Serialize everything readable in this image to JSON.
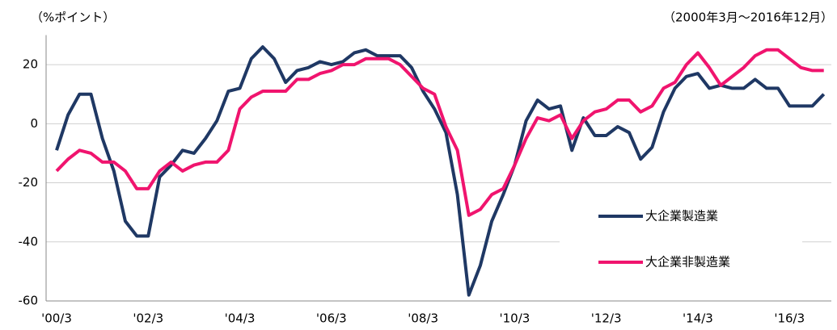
{
  "chart_data": {
    "type": "line",
    "y_unit_label": "（%ポイント）",
    "period_label": "（2000年3月～2016年12月）",
    "categories": [
      "'00/3",
      null,
      null,
      null,
      null,
      null,
      null,
      null,
      "'02/3",
      null,
      null,
      null,
      null,
      null,
      null,
      null,
      "'04/3",
      null,
      null,
      null,
      null,
      null,
      null,
      null,
      "'06/3",
      null,
      null,
      null,
      null,
      null,
      null,
      null,
      "'08/3",
      null,
      null,
      null,
      null,
      null,
      null,
      null,
      "'10/3",
      null,
      null,
      null,
      null,
      null,
      null,
      null,
      "'12/3",
      null,
      null,
      null,
      null,
      null,
      null,
      null,
      "'14/3",
      null,
      null,
      null,
      null,
      null,
      null,
      null,
      "'16/3",
      null,
      null,
      null
    ],
    "series": [
      {
        "name": "大企業製造業",
        "color": "#1f3864",
        "values": [
          -9,
          3,
          10,
          10,
          -5,
          -16,
          -33,
          -38,
          -38,
          -18,
          -14,
          -9,
          -10,
          -5,
          1,
          11,
          12,
          22,
          26,
          22,
          14,
          18,
          19,
          21,
          20,
          21,
          24,
          25,
          23,
          23,
          23,
          19,
          11,
          5,
          -3,
          -24,
          -58,
          -48,
          -33,
          -24,
          -14,
          1,
          8,
          5,
          6,
          -9,
          2,
          -4,
          -4,
          -1,
          -3,
          -12,
          -8,
          4,
          12,
          16,
          17,
          12,
          13,
          12,
          12,
          15,
          12,
          12,
          6,
          6,
          6,
          10
        ]
      },
      {
        "name": "大企業非製造業",
        "color": "#f0146e",
        "values": [
          -16,
          -12,
          -9,
          -10,
          -13,
          -13,
          -16,
          -22,
          -22,
          -16,
          -13,
          -16,
          -14,
          -13,
          -13,
          -9,
          5,
          9,
          11,
          11,
          11,
          15,
          15,
          17,
          18,
          20,
          20,
          22,
          22,
          22,
          20,
          16,
          12,
          10,
          -1,
          -9,
          -31,
          -29,
          -24,
          -22,
          -14,
          -5,
          2,
          1,
          3,
          -5,
          1,
          4,
          5,
          8,
          8,
          4,
          6,
          12,
          14,
          20,
          24,
          19,
          13,
          16,
          19,
          23,
          25,
          25,
          22,
          19,
          18,
          18
        ]
      }
    ],
    "ylim": [
      -60,
      30
    ],
    "yticks": [
      -60,
      -40,
      -20,
      0,
      20
    ],
    "grid": true
  }
}
